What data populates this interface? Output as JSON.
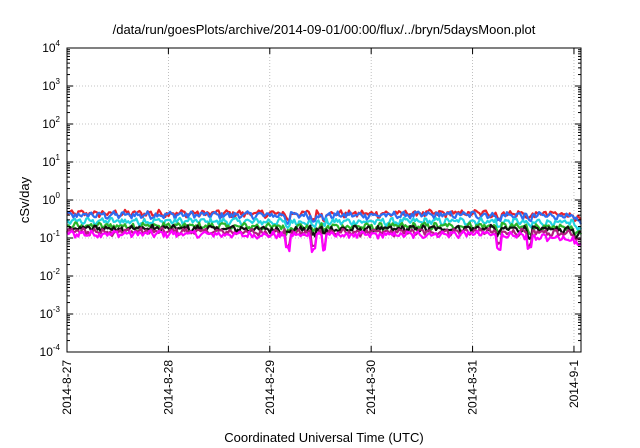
{
  "chart_data": {
    "type": "line",
    "title": "/data/run/goesPlots/archive/2014-09-01/00:00/flux/../bryn/5daysMoon.plot",
    "xlabel": "Coordinated Universal Time (UTC)",
    "ylabel": "cSv/day",
    "yscale": "log",
    "ylim": [
      0.0001,
      10000
    ],
    "y_ticks": [
      {
        "base": "10",
        "exp": "-4",
        "value": 0.0001
      },
      {
        "base": "10",
        "exp": "-3",
        "value": 0.001
      },
      {
        "base": "10",
        "exp": "-2",
        "value": 0.01
      },
      {
        "base": "10",
        "exp": "-1",
        "value": 0.1
      },
      {
        "base": "10",
        "exp": "0",
        "value": 1
      },
      {
        "base": "10",
        "exp": "1",
        "value": 10
      },
      {
        "base": "10",
        "exp": "2",
        "value": 100
      },
      {
        "base": "10",
        "exp": "3",
        "value": 1000
      },
      {
        "base": "10",
        "exp": "4",
        "value": 10000
      }
    ],
    "xlim": [
      "2014-08-27",
      "2014-09-01T01:40"
    ],
    "x_tick_dates": [
      "2014-08-27",
      "2014-08-28",
      "2014-08-29",
      "2014-08-30",
      "2014-08-31",
      "2014-09-01"
    ],
    "categories": [
      "2014-8-27",
      "2014-8-28",
      "2014-8-29",
      "2014-8-30",
      "2014-8-31",
      "2014-9-1"
    ],
    "grid": true,
    "legend": "none",
    "series": [
      {
        "color": "#e8202a",
        "values": [
          0.44,
          0.45,
          0.44,
          0.44,
          0.45,
          0.42
        ]
      },
      {
        "color": "#2e6df0",
        "values": [
          0.4,
          0.41,
          0.4,
          0.4,
          0.41,
          0.38
        ]
      },
      {
        "color": "#22d3e0",
        "values": [
          0.28,
          0.28,
          0.27,
          0.27,
          0.28,
          0.25
        ]
      },
      {
        "color": "#2ab52a",
        "values": [
          0.21,
          0.21,
          0.2,
          0.2,
          0.21,
          0.18
        ]
      },
      {
        "color": "#111111",
        "values": [
          0.18,
          0.18,
          0.17,
          0.17,
          0.18,
          0.16
        ]
      },
      {
        "color": "#b02080",
        "values": [
          0.15,
          0.15,
          0.14,
          0.14,
          0.15,
          0.13
        ]
      },
      {
        "color": "#ff00ff",
        "values": [
          0.13,
          0.13,
          0.12,
          0.12,
          0.13,
          0.09
        ]
      }
    ]
  }
}
